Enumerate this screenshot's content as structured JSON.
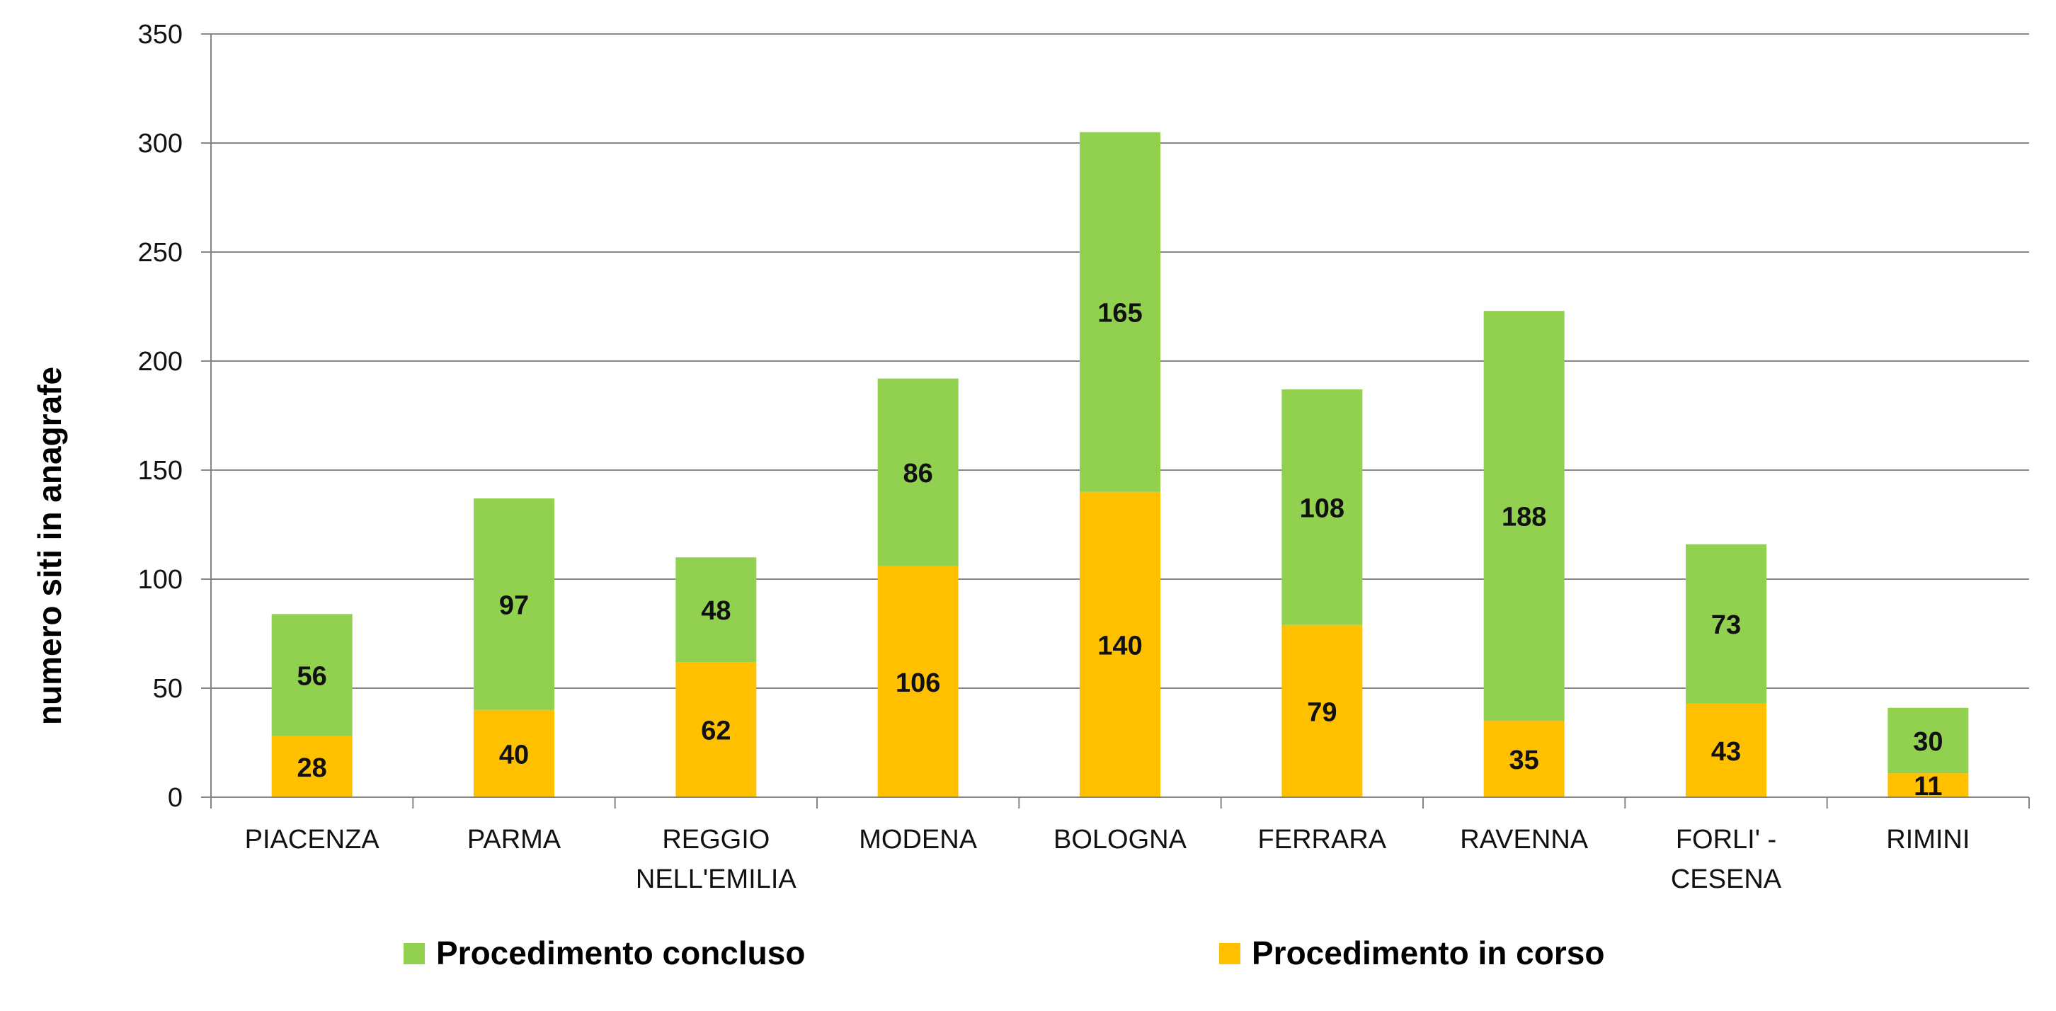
{
  "chart_data": {
    "type": "bar",
    "stacked": true,
    "title": "",
    "xlabel": "",
    "ylabel": "numero siti in anagrafe",
    "ylim": [
      0,
      350
    ],
    "yticks": [
      0,
      50,
      100,
      150,
      200,
      250,
      300,
      350
    ],
    "grid": true,
    "legend_position": "bottom",
    "categories": [
      [
        "PIACENZA"
      ],
      [
        "PARMA"
      ],
      [
        "REGGIO",
        "NELL'EMILIA"
      ],
      [
        "MODENA"
      ],
      [
        "BOLOGNA"
      ],
      [
        "FERRARA"
      ],
      [
        "RAVENNA"
      ],
      [
        "FORLI' -",
        "CESENA"
      ],
      [
        "RIMINI"
      ]
    ],
    "series": [
      {
        "name": "Procedimento in corso",
        "color": "#FFC000",
        "values": [
          28,
          40,
          62,
          106,
          140,
          79,
          35,
          43,
          11
        ]
      },
      {
        "name": "Procedimento concluso",
        "color": "#92D050",
        "values": [
          56,
          97,
          48,
          86,
          165,
          108,
          188,
          73,
          30
        ]
      }
    ],
    "legend": [
      {
        "name": "Procedimento concluso",
        "color": "#92D050"
      },
      {
        "name": "Procedimento in corso",
        "color": "#FFC000"
      }
    ]
  }
}
